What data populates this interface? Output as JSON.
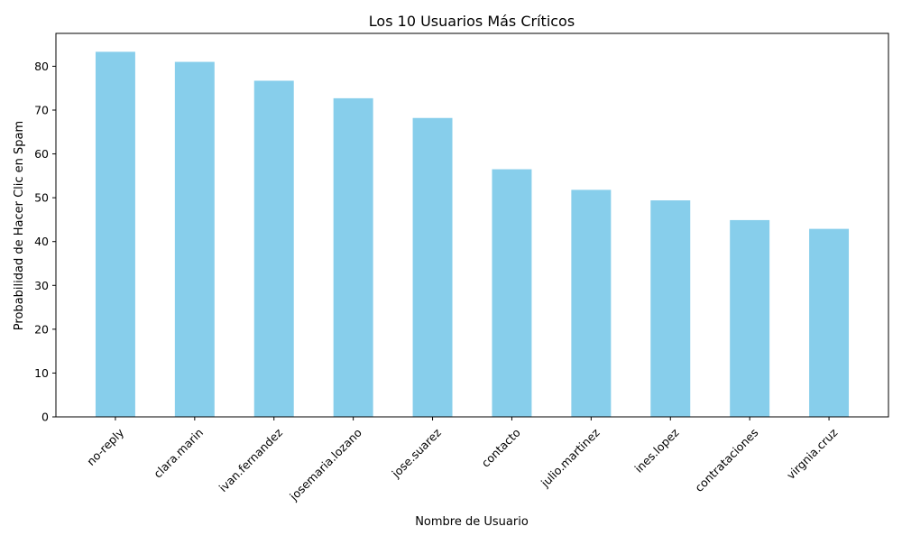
{
  "chart_data": {
    "type": "bar",
    "title": "Los 10 Usuarios Más Críticos",
    "xlabel": "Nombre de Usuario",
    "ylabel": "Probabilidad de Hacer Clic en Spam",
    "categories": [
      "no-reply",
      "clara.marin",
      "ivan.fernandez",
      "josemaria.lozano",
      "jose.suarez",
      "contacto",
      "julio.martinez",
      "ines.lopez",
      "contrataciones",
      "virgnia.cruz"
    ],
    "values": [
      83.3,
      81.0,
      76.7,
      72.7,
      68.2,
      56.5,
      51.8,
      49.4,
      44.9,
      42.9
    ],
    "ylim": [
      0,
      87.5
    ],
    "yticks": [
      0,
      10,
      20,
      30,
      40,
      50,
      60,
      70,
      80
    ],
    "grid": false,
    "legend": "none",
    "bar_color": "#87ceeb",
    "xtick_rotation": 45
  }
}
